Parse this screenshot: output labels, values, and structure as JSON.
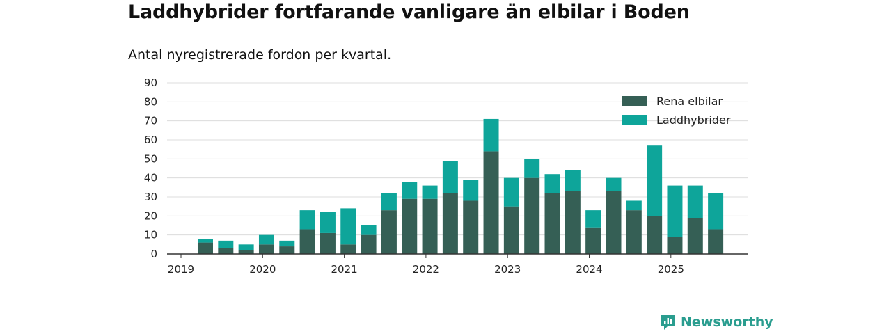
{
  "header": {
    "title": "Laddhybrider fortfarande vanligare än elbilar i Boden",
    "subtitle": "Antal nyregistrerade fordon per kvartal."
  },
  "branding": {
    "name": "Newsworthy",
    "icon": "newsworthy-logo-icon",
    "color": "#2a9d8f"
  },
  "chart_data": {
    "type": "bar",
    "stacked": true,
    "title": "Laddhybrider fortfarande vanligare än elbilar i Boden",
    "subtitle": "Antal nyregistrerade fordon per kvartal.",
    "xlabel": "",
    "ylabel": "",
    "ylim": [
      0,
      90
    ],
    "yticks": [
      0,
      10,
      20,
      30,
      40,
      50,
      60,
      70,
      80,
      90
    ],
    "xticks": [
      "2019",
      "2020",
      "2021",
      "2022",
      "2023",
      "2024",
      "2025"
    ],
    "grid": true,
    "legend_position": "top-right",
    "categories": [
      "2019 Q2",
      "2019 Q3",
      "2019 Q4",
      "2020 Q1",
      "2020 Q2",
      "2020 Q3",
      "2020 Q4",
      "2021 Q1",
      "2021 Q2",
      "2021 Q3",
      "2021 Q4",
      "2022 Q1",
      "2022 Q2",
      "2022 Q3",
      "2022 Q4",
      "2023 Q1",
      "2023 Q2",
      "2023 Q3",
      "2023 Q4",
      "2024 Q1",
      "2024 Q2",
      "2024 Q3",
      "2024 Q4",
      "2025 Q1",
      "2025 Q2",
      "2025 Q3"
    ],
    "series": [
      {
        "name": "Rena elbilar",
        "color": "#355f55",
        "values": [
          6,
          3,
          2,
          5,
          4,
          13,
          11,
          5,
          10,
          23,
          29,
          29,
          32,
          28,
          54,
          25,
          40,
          32,
          33,
          14,
          33,
          23,
          20,
          9,
          19,
          13
        ]
      },
      {
        "name": "Laddhybrider",
        "color": "#0ea59a",
        "values": [
          2,
          4,
          3,
          5,
          3,
          10,
          11,
          19,
          5,
          9,
          9,
          7,
          17,
          11,
          17,
          15,
          10,
          10,
          11,
          9,
          7,
          5,
          37,
          27,
          17,
          19
        ]
      }
    ]
  }
}
